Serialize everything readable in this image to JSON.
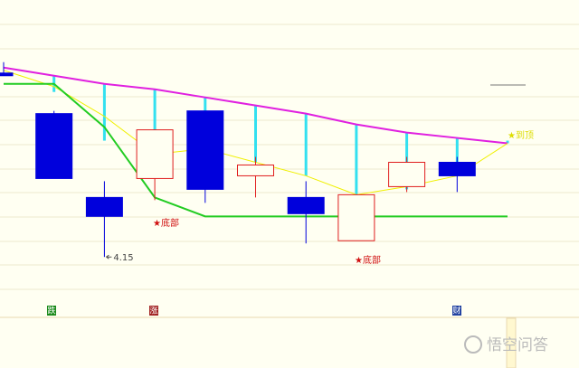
{
  "chart_data": {
    "type": "candlestick",
    "ylim": [
      3.93,
      5.1
    ],
    "categories": [
      null,
      null,
      null,
      null,
      null,
      null,
      null,
      null,
      null,
      null,
      null
    ],
    "candles": {
      "open": [
        4.83,
        4.68,
        4.37,
        4.44,
        4.69,
        4.45,
        4.37,
        4.21,
        4.41,
        4.5,
        null
      ],
      "high": [
        4.87,
        4.69,
        4.43,
        4.62,
        4.69,
        4.52,
        4.43,
        4.38,
        4.52,
        4.52,
        null
      ],
      "low": [
        4.82,
        4.44,
        4.15,
        4.36,
        4.35,
        4.37,
        4.2,
        4.21,
        4.39,
        4.39,
        null
      ],
      "close": [
        4.82,
        4.44,
        4.3,
        4.62,
        4.4,
        4.49,
        4.31,
        4.38,
        4.5,
        4.45,
        null
      ],
      "up_color": "#e01e1e",
      "down_color": "#0000dc"
    },
    "series": [
      {
        "color": "#e020e0",
        "values": [
          4.85,
          4.82,
          4.79,
          4.77,
          4.74,
          4.71,
          4.68,
          4.64,
          4.61,
          4.59,
          4.57
        ]
      },
      {
        "color": "#f0f000",
        "values": [
          4.84,
          4.78,
          4.67,
          4.53,
          4.55,
          4.5,
          4.45,
          4.38,
          4.41,
          4.45,
          4.57
        ]
      },
      {
        "color": "#22cc22",
        "values": [
          4.79,
          4.79,
          4.63,
          4.37,
          4.3,
          4.3,
          4.3,
          4.3,
          4.3,
          4.3,
          4.3
        ]
      }
    ],
    "ranges": {
      "color": "#33e0f0",
      "top": [
        null,
        4.82,
        4.79,
        4.77,
        4.74,
        4.71,
        4.68,
        4.64,
        4.61,
        4.59,
        4.58
      ],
      "bottom": [
        null,
        4.76,
        4.58,
        4.54,
        4.55,
        4.5,
        4.45,
        4.38,
        4.4,
        4.45,
        4.57
      ]
    },
    "annotations": [
      "★底部",
      "★底部",
      "★到顶"
    ],
    "markers": [
      "跌",
      "涨",
      "财"
    ],
    "watermark": "悟空问答"
  }
}
